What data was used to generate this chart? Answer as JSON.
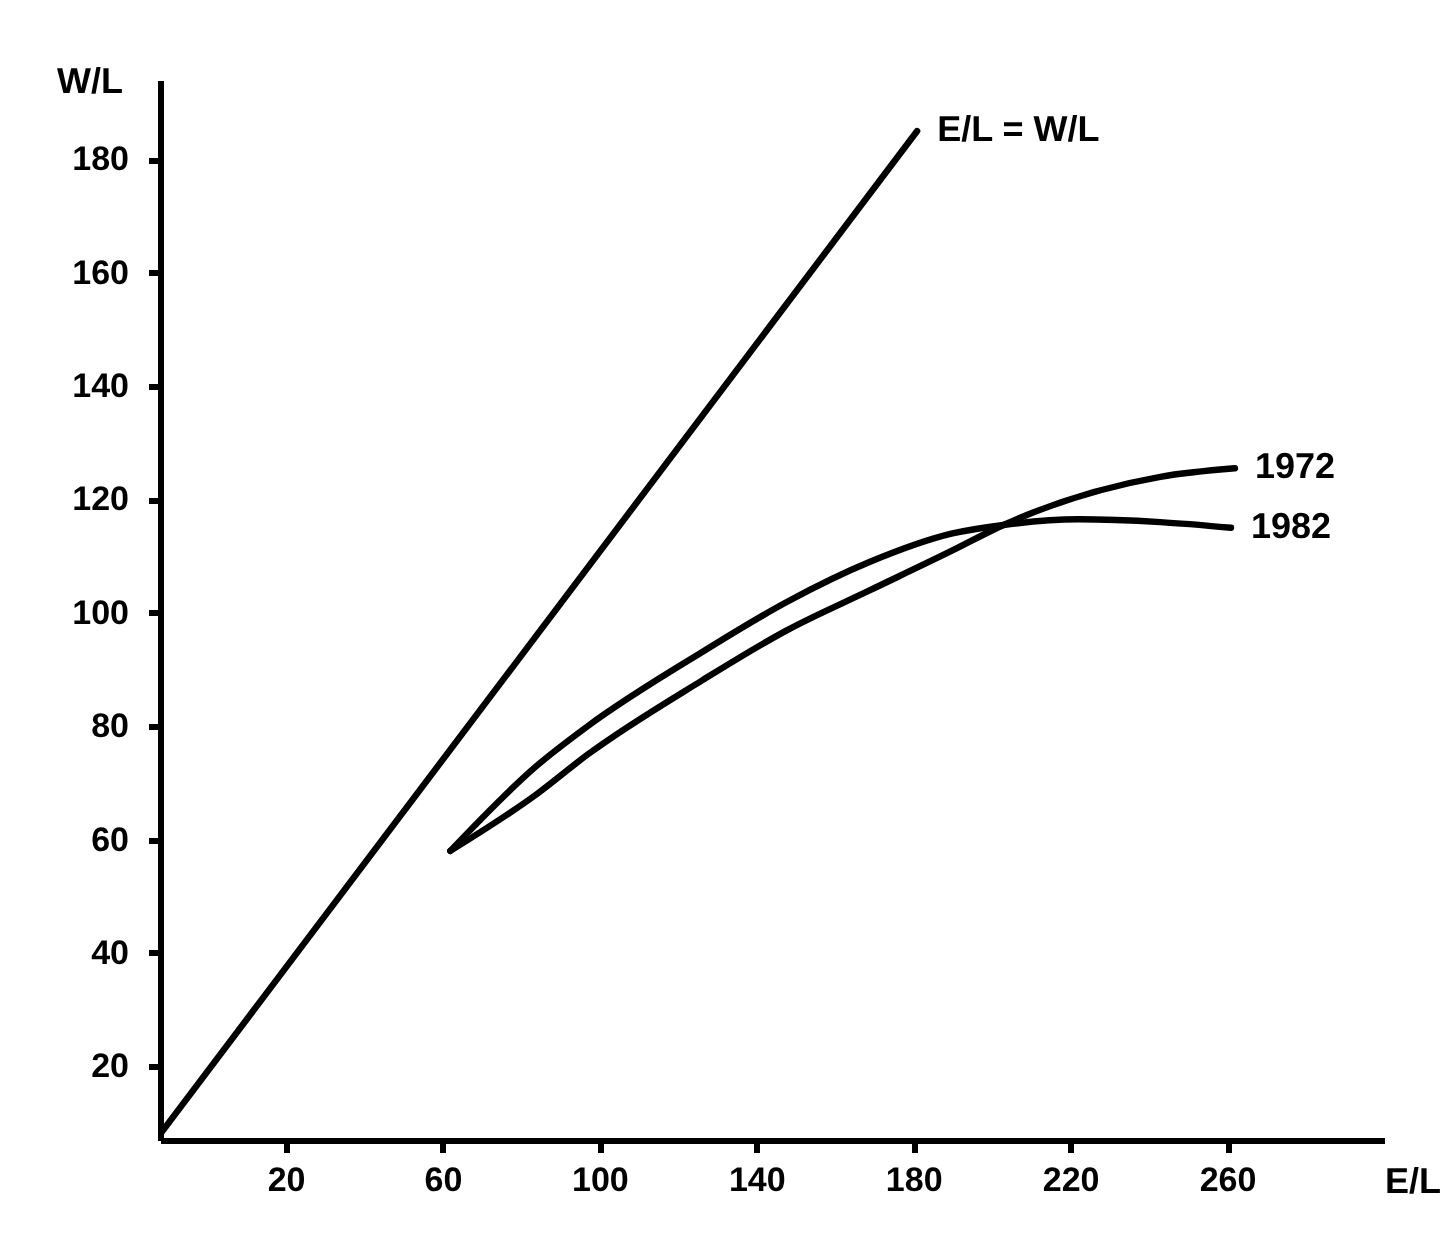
{
  "chart_data": {
    "type": "line",
    "xlabel": "E/L",
    "ylabel": "W/L",
    "xlim": [
      -12,
      300
    ],
    "ylim": [
      7,
      194
    ],
    "xticks": [
      20,
      60,
      100,
      140,
      180,
      220,
      260
    ],
    "yticks": [
      20,
      40,
      60,
      80,
      100,
      120,
      140,
      160,
      180
    ],
    "grid": false,
    "marker": "none",
    "line_style": "solid",
    "series": [
      {
        "name": "E/L = W/L",
        "color": "#000000",
        "x": [
          -12,
          181
        ],
        "values": [
          8,
          185
        ]
      },
      {
        "name": "1972",
        "color": "#000000",
        "x": [
          62,
          84,
          97,
          126,
          148,
          169,
          190,
          203,
          243,
          262
        ],
        "values": [
          58,
          68,
          75,
          88,
          97,
          104,
          111,
          115.5,
          124,
          125.5
        ]
      },
      {
        "name": "1982",
        "color": "#000000",
        "x": [
          62,
          84,
          97,
          126,
          148,
          169,
          190,
          203,
          222,
          243,
          261
        ],
        "values": [
          58,
          73,
          80,
          93,
          102,
          109,
          114,
          115.5,
          116.5,
          116,
          115
        ]
      }
    ]
  }
}
